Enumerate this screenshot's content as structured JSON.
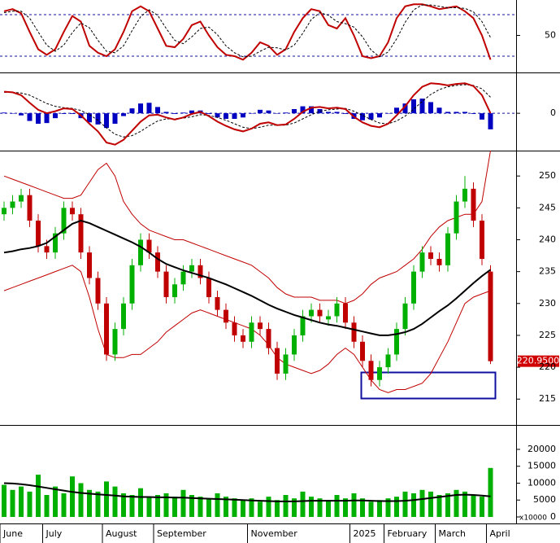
{
  "chart_data": [
    {
      "type": "stochastic",
      "ylim": [
        0,
        100
      ],
      "yticks": [
        50
      ],
      "reference_lines": [
        20,
        80
      ],
      "series": [
        {
          "color": "#c00000",
          "values": [
            85,
            88,
            82,
            55,
            30,
            22,
            30,
            55,
            78,
            70,
            35,
            25,
            20,
            30,
            55,
            85,
            92,
            85,
            60,
            35,
            33,
            45,
            65,
            70,
            50,
            33,
            22,
            20,
            15,
            25,
            40,
            35,
            22,
            30,
            55,
            75,
            88,
            85,
            65,
            60,
            75,
            50,
            20,
            17,
            20,
            40,
            75,
            92,
            95,
            95,
            92,
            88,
            90,
            92,
            85,
            75,
            50,
            15
          ]
        },
        {
          "color": "#000000",
          "values": [
            83,
            85,
            85,
            75,
            55,
            36,
            27,
            36,
            54,
            68,
            61,
            43,
            27,
            25,
            35,
            57,
            77,
            87,
            79,
            60,
            43,
            38,
            48,
            60,
            62,
            51,
            35,
            25,
            19,
            20,
            27,
            33,
            32,
            29,
            36,
            53,
            73,
            83,
            79,
            70,
            67,
            62,
            48,
            29,
            19,
            26,
            45,
            69,
            87,
            94,
            94,
            92,
            90,
            90,
            89,
            84,
            70,
            47
          ]
        }
      ]
    },
    {
      "type": "macd",
      "ylim": [
        -5,
        5.5
      ],
      "yticks": [
        0
      ],
      "macd": {
        "color": "#c00000",
        "values": [
          3.1,
          3.0,
          2.6,
          1.5,
          0.5,
          0.0,
          0.3,
          0.7,
          0.6,
          -0.3,
          -1.5,
          -2.6,
          -4.2,
          -4.5,
          -3.8,
          -2.5,
          -1.2,
          -0.3,
          -0.2,
          -0.6,
          -0.9,
          -0.6,
          -0.1,
          0.2,
          -0.4,
          -1.2,
          -1.8,
          -2.3,
          -2.6,
          -2.2,
          -1.5,
          -1.3,
          -1.7,
          -1.6,
          -0.8,
          0.2,
          0.8,
          0.9,
          0.7,
          0.8,
          0.6,
          -0.5,
          -1.3,
          -1.8,
          -2.0,
          -1.5,
          -0.3,
          1.0,
          2.6,
          3.8,
          4.3,
          4.2,
          4.0,
          4.2,
          4.3,
          3.9,
          2.6,
          0.0
        ]
      },
      "signal": {
        "color": "#000000",
        "values": [
          3.0,
          3.0,
          2.9,
          2.6,
          2.0,
          1.4,
          1.0,
          0.8,
          0.7,
          0.4,
          -0.2,
          -1.0,
          -2.1,
          -3.0,
          -3.4,
          -3.2,
          -2.6,
          -1.8,
          -1.1,
          -0.8,
          -0.8,
          -0.7,
          -0.5,
          -0.2,
          -0.3,
          -0.6,
          -1.0,
          -1.5,
          -2.0,
          -2.2,
          -2.0,
          -1.7,
          -1.7,
          -1.7,
          -1.4,
          -0.8,
          -0.2,
          0.3,
          0.5,
          0.6,
          0.7,
          0.3,
          -0.3,
          -0.9,
          -1.4,
          -1.5,
          -1.1,
          -0.4,
          0.6,
          1.7,
          2.7,
          3.4,
          3.8,
          4.0,
          4.1,
          4.0,
          3.5,
          2.3
        ]
      },
      "histogram": {
        "color": "#0000c0",
        "values": [
          0.1,
          0.0,
          -0.3,
          -1.1,
          -1.5,
          -1.4,
          -0.7,
          -0.1,
          -0.1,
          -0.7,
          -1.3,
          -1.6,
          -2.1,
          -1.5,
          -0.4,
          0.7,
          1.4,
          1.5,
          0.9,
          0.2,
          -0.1,
          0.1,
          0.4,
          0.4,
          -0.1,
          -0.6,
          -0.8,
          -0.8,
          -0.6,
          0.0,
          0.5,
          0.4,
          0.0,
          0.1,
          0.6,
          1.0,
          1.0,
          0.6,
          0.2,
          0.2,
          -0.1,
          -0.8,
          -1.0,
          -0.9,
          -0.6,
          0.0,
          0.8,
          1.4,
          2.0,
          2.1,
          1.6,
          0.8,
          0.2,
          0.2,
          0.2,
          -0.1,
          -0.9,
          -2.3
        ]
      }
    },
    {
      "type": "candlestick",
      "ylim": [
        211.2,
        253.6
      ],
      "yticks": [
        215,
        220,
        225,
        230,
        235,
        240,
        245,
        250
      ],
      "categories": [
        "June",
        null,
        null,
        null,
        null,
        "July",
        null,
        null,
        null,
        null,
        null,
        null,
        "August",
        null,
        null,
        null,
        null,
        null,
        "September",
        null,
        null,
        null,
        null,
        null,
        null,
        null,
        null,
        null,
        null,
        "November",
        null,
        null,
        null,
        null,
        null,
        null,
        null,
        null,
        null,
        null,
        null,
        "2025",
        null,
        null,
        null,
        "February",
        null,
        null,
        null,
        null,
        null,
        "March",
        null,
        null,
        null,
        null,
        null,
        "April"
      ],
      "up_color": "#00b000",
      "down_color": "#c00000",
      "open": [
        244,
        245,
        246,
        247,
        243,
        239,
        238,
        241,
        245,
        244,
        238,
        234,
        230,
        222,
        226,
        230,
        236,
        240,
        238,
        235,
        231,
        233,
        235,
        236,
        234,
        231,
        229,
        227,
        225,
        224,
        227,
        226,
        223,
        219,
        222,
        225,
        228,
        229,
        227.5,
        228,
        230,
        227,
        224,
        221,
        218,
        220,
        222,
        226,
        230,
        235,
        238,
        237,
        236,
        241,
        246,
        248,
        243,
        235
      ],
      "high": [
        246,
        247,
        248,
        248,
        244,
        240,
        242,
        246,
        246,
        245,
        239,
        235,
        231,
        227,
        231,
        237,
        241,
        241,
        239,
        236,
        234,
        236,
        237,
        237,
        235,
        232,
        230,
        228,
        226,
        228,
        228,
        227,
        224,
        223,
        226,
        229,
        230,
        230,
        229,
        231,
        231,
        228,
        225,
        222,
        221,
        223,
        227,
        231,
        236,
        239,
        239,
        238,
        242,
        247,
        250,
        249,
        244,
        236
      ],
      "low": [
        243,
        244,
        245,
        242,
        238,
        237,
        237,
        240,
        243,
        237,
        233,
        229,
        221,
        221,
        225,
        229,
        235,
        237,
        234,
        230,
        230,
        232,
        234,
        233,
        230,
        228,
        226,
        224,
        223,
        223,
        225,
        222,
        218,
        218,
        221,
        224,
        227,
        227,
        226.5,
        227,
        226,
        223,
        220,
        217,
        217,
        219,
        221,
        225,
        229,
        234,
        236,
        235,
        235,
        240,
        245,
        242,
        236,
        220.5
      ],
      "close": [
        245,
        246,
        247,
        243,
        239,
        238,
        241,
        245,
        244,
        238,
        234,
        230,
        222,
        226,
        230,
        236,
        240,
        238,
        235,
        231,
        233,
        235,
        236,
        234,
        231,
        229,
        227,
        225,
        224,
        227,
        226,
        223,
        219,
        222,
        225,
        228,
        229,
        228,
        228,
        230,
        227,
        224,
        221,
        218,
        220,
        222,
        226,
        230,
        235,
        238,
        237,
        236,
        241,
        246,
        248,
        243,
        237,
        220.95
      ],
      "last_label": "220.9500",
      "ma": {
        "color": "#000000",
        "values": [
          238,
          238.2,
          238.5,
          238.7,
          239,
          239.5,
          240.5,
          241.5,
          242.5,
          243,
          242.6,
          242,
          241.4,
          240.8,
          240.2,
          239.6,
          238.9,
          238,
          237,
          236.2,
          235.7,
          235.2,
          234.8,
          234.4,
          234,
          233.5,
          233,
          232.4,
          231.8,
          231.2,
          230.5,
          229.8,
          229.2,
          228.7,
          228.2,
          227.8,
          227.4,
          227,
          226.7,
          226.5,
          226.2,
          225.9,
          225.6,
          225.3,
          225,
          225,
          225.2,
          225.5,
          226,
          226.8,
          227.8,
          228.8,
          229.7,
          230.8,
          232,
          233.2,
          234.3,
          235.3
        ]
      },
      "bb_upper": {
        "color": "#c00000",
        "values": [
          250,
          249.5,
          249,
          248.5,
          248,
          247.5,
          247,
          246.5,
          246.5,
          247,
          249,
          251,
          252,
          250,
          246,
          244,
          242.5,
          241.5,
          241,
          240.5,
          240,
          240,
          239.5,
          239,
          238.5,
          238,
          237.5,
          237,
          236.5,
          236,
          235,
          234,
          232.5,
          231.5,
          231,
          231,
          231,
          230.5,
          230.5,
          230.5,
          230,
          230.5,
          231.5,
          233,
          234,
          234.5,
          235,
          236,
          237,
          238.5,
          240.5,
          242,
          243,
          243.5,
          244,
          244,
          246,
          254
        ]
      },
      "bb_lower": {
        "color": "#c00000",
        "values": [
          232,
          232.5,
          233,
          233.5,
          234,
          234.5,
          235,
          235.5,
          236,
          235,
          231,
          226,
          222,
          221.5,
          221.5,
          222,
          222,
          223,
          224,
          225.5,
          226.5,
          227.5,
          228.5,
          229,
          228.5,
          228,
          227.5,
          227,
          226.5,
          226,
          225,
          223.5,
          221.5,
          220.5,
          220,
          219.5,
          219,
          219.5,
          220.5,
          222,
          223,
          222,
          220,
          218,
          216.5,
          216,
          216.5,
          216.5,
          217,
          217.5,
          219,
          221.5,
          224,
          227,
          230,
          231,
          231.5,
          232
        ]
      }
    },
    {
      "type": "volume",
      "ylim": [
        0,
        26500
      ],
      "yticks": [
        0,
        5000,
        10000,
        15000,
        20000
      ],
      "unit_label": "x10000",
      "color": "#00b000",
      "values": [
        9500,
        8000,
        9000,
        7500,
        12500,
        6500,
        9000,
        7000,
        12000,
        10000,
        8000,
        7500,
        10500,
        9000,
        7000,
        6500,
        8500,
        6000,
        6500,
        7000,
        6000,
        8000,
        6500,
        6000,
        5500,
        7000,
        6000,
        5500,
        5000,
        5500,
        4500,
        6000,
        5000,
        6500,
        5500,
        7500,
        6000,
        5500,
        5000,
        6500,
        5500,
        7000,
        5500,
        4500,
        5000,
        5500,
        6000,
        7500,
        7000,
        8000,
        7500,
        6500,
        7000,
        8000,
        7500,
        6500,
        6000,
        14500
      ],
      "ma": {
        "color": "#000000",
        "values": [
          10000,
          9900,
          9700,
          9400,
          9000,
          8600,
          8200,
          7800,
          7400,
          7100,
          6900,
          6700,
          6500,
          6300,
          6100,
          6000,
          5900,
          5900,
          5800,
          5800,
          5700,
          5700,
          5600,
          5500,
          5400,
          5300,
          5200,
          5100,
          5000,
          4900,
          4800,
          4700,
          4600,
          4600,
          4600,
          4700,
          4800,
          4800,
          4800,
          4800,
          4800,
          4900,
          4900,
          4800,
          4700,
          4700,
          4700,
          4800,
          5000,
          5300,
          5600,
          5900,
          6200,
          6500,
          6600,
          6500,
          6300,
          6100
        ]
      }
    }
  ]
}
